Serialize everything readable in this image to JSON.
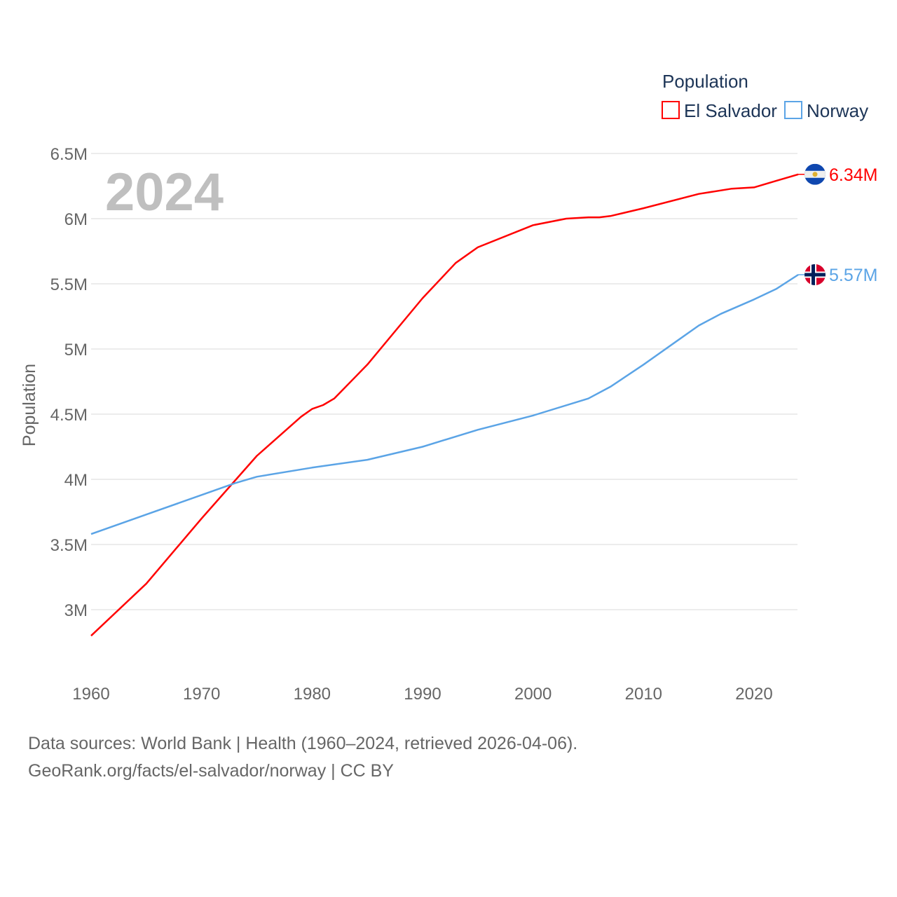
{
  "chart_data": {
    "type": "line",
    "title": "Population",
    "ylabel": "Population",
    "xlabel": "",
    "xlim": [
      1960,
      2024
    ],
    "ylim": [
      2.8,
      6.5
    ],
    "y_unit": "millions",
    "x_ticks": [
      "1960",
      "1970",
      "1980",
      "1990",
      "2000",
      "2010",
      "2020"
    ],
    "y_ticks": [
      {
        "v": 3,
        "label": "3M"
      },
      {
        "v": 3.5,
        "label": "3.5M"
      },
      {
        "v": 4,
        "label": "4M"
      },
      {
        "v": 4.5,
        "label": "4.5M"
      },
      {
        "v": 5,
        "label": "5M"
      },
      {
        "v": 5.5,
        "label": "5.5M"
      },
      {
        "v": 6,
        "label": "6M"
      },
      {
        "v": 6.5,
        "label": "6.5M"
      }
    ],
    "grid": true,
    "legend_position": "top-right",
    "year_label": "2024",
    "series": [
      {
        "name": "El Salvador",
        "color": "#ff0000",
        "end_label": "6.34M",
        "flag": "el-salvador",
        "x": [
          1960,
          1965,
          1970,
          1975,
          1979,
          1980,
          1981,
          1982,
          1985,
          1990,
          1993,
          1995,
          2000,
          2003,
          2005,
          2006,
          2007,
          2010,
          2015,
          2018,
          2020,
          2022,
          2024
        ],
        "y": [
          2.8,
          3.2,
          3.7,
          4.18,
          4.48,
          4.54,
          4.57,
          4.62,
          4.88,
          5.39,
          5.66,
          5.78,
          5.95,
          6.0,
          6.01,
          6.01,
          6.02,
          6.08,
          6.19,
          6.23,
          6.24,
          6.29,
          6.34
        ]
      },
      {
        "name": "Norway",
        "color": "#5ba4e6",
        "end_label": "5.57M",
        "flag": "norway",
        "x": [
          1960,
          1965,
          1970,
          1973,
          1975,
          1980,
          1985,
          1990,
          1995,
          2000,
          2005,
          2007,
          2010,
          2013,
          2015,
          2017,
          2020,
          2022,
          2024
        ],
        "y": [
          3.58,
          3.73,
          3.88,
          3.97,
          4.02,
          4.09,
          4.15,
          4.25,
          4.38,
          4.49,
          4.62,
          4.71,
          4.88,
          5.06,
          5.18,
          5.27,
          5.38,
          5.46,
          5.57
        ]
      }
    ]
  },
  "footer": {
    "line1": "Data sources: World Bank | Health (1960–2024, retrieved 2026-04-06).",
    "line2": "GeoRank.org/facts/el-salvador/norway | CC BY"
  }
}
